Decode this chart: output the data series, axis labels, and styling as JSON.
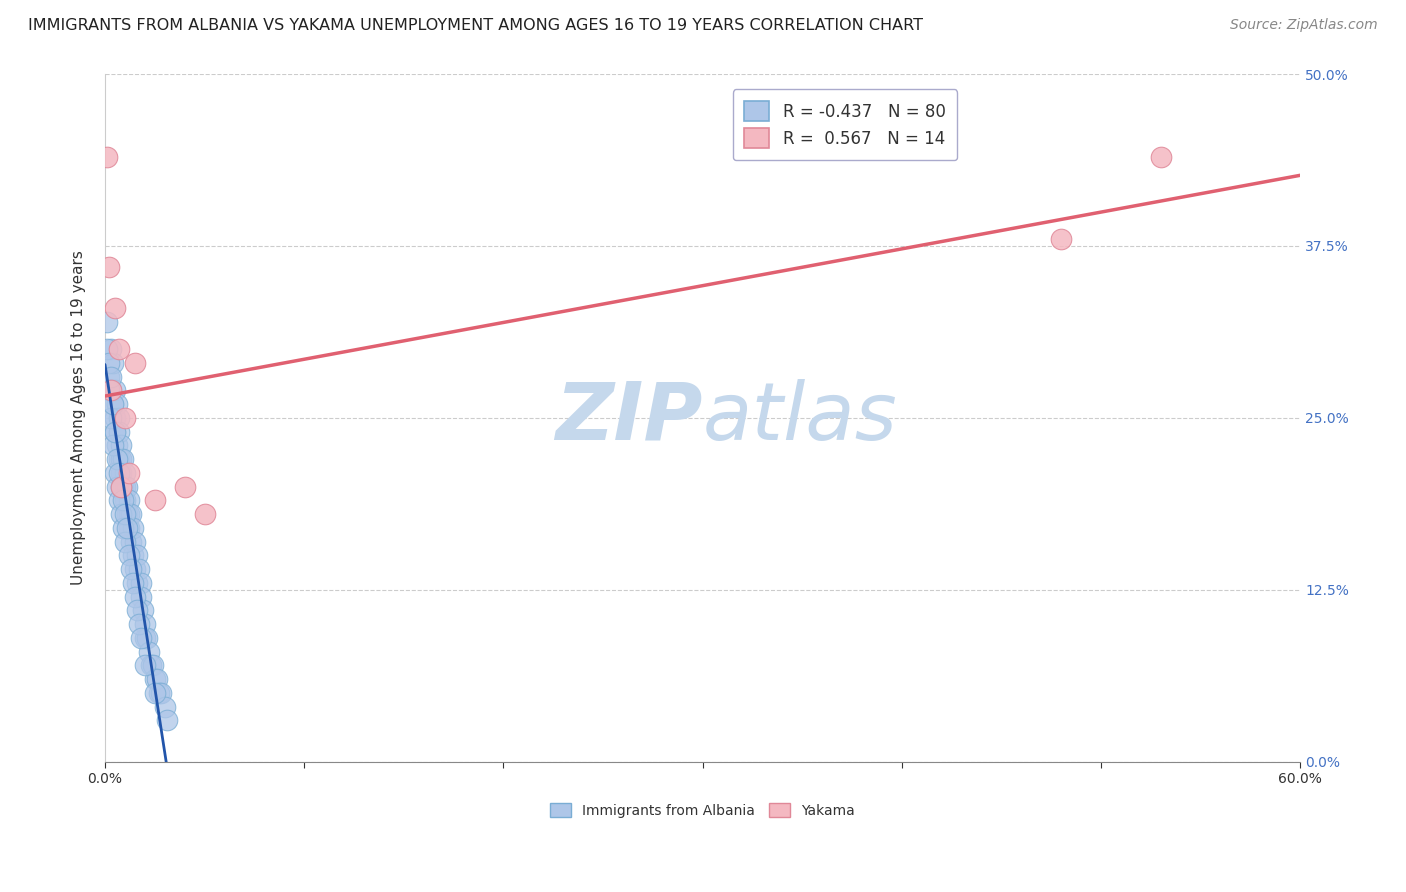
{
  "title": "IMMIGRANTS FROM ALBANIA VS YAKAMA UNEMPLOYMENT AMONG AGES 16 TO 19 YEARS CORRELATION CHART",
  "source": "Source: ZipAtlas.com",
  "ylabel": "Unemployment Among Ages 16 to 19 years",
  "xlabel_albania": "Immigrants from Albania",
  "xlabel_yakama": "Yakama",
  "xlim": [
    0.0,
    0.6
  ],
  "ylim": [
    0.0,
    0.5
  ],
  "xticks": [
    0.0,
    0.1,
    0.2,
    0.3,
    0.4,
    0.5,
    0.6
  ],
  "yticks": [
    0.0,
    0.125,
    0.25,
    0.375,
    0.5
  ],
  "R_albania": -0.437,
  "N_albania": 80,
  "R_yakama": 0.567,
  "N_yakama": 14,
  "color_albania": "#aec6e8",
  "color_albania_edge": "#7aadd4",
  "color_albania_line": "#2255aa",
  "color_yakama": "#f4b8c1",
  "color_yakama_edge": "#e08898",
  "color_yakama_line": "#e06070",
  "watermark": "ZIPatlas",
  "watermark_color": "#d8e8f5",
  "title_fontsize": 11.5,
  "axis_label_fontsize": 11,
  "tick_fontsize": 10,
  "legend_fontsize": 12,
  "source_fontsize": 10,
  "albania_x": [
    0.002,
    0.003,
    0.003,
    0.004,
    0.004,
    0.005,
    0.005,
    0.005,
    0.006,
    0.006,
    0.007,
    0.007,
    0.007,
    0.008,
    0.008,
    0.008,
    0.009,
    0.009,
    0.01,
    0.01,
    0.01,
    0.011,
    0.011,
    0.012,
    0.012,
    0.012,
    0.013,
    0.013,
    0.014,
    0.014,
    0.015,
    0.015,
    0.016,
    0.016,
    0.017,
    0.018,
    0.018,
    0.019,
    0.02,
    0.02,
    0.021,
    0.022,
    0.023,
    0.024,
    0.025,
    0.026,
    0.027,
    0.028,
    0.03,
    0.031,
    0.001,
    0.001,
    0.002,
    0.002,
    0.003,
    0.003,
    0.004,
    0.004,
    0.005,
    0.005,
    0.006,
    0.006,
    0.007,
    0.007,
    0.008,
    0.008,
    0.009,
    0.009,
    0.01,
    0.01,
    0.011,
    0.012,
    0.013,
    0.014,
    0.015,
    0.016,
    0.017,
    0.018,
    0.02,
    0.025
  ],
  "albania_y": [
    0.28,
    0.3,
    0.27,
    0.29,
    0.26,
    0.25,
    0.27,
    0.24,
    0.26,
    0.23,
    0.25,
    0.22,
    0.24,
    0.23,
    0.21,
    0.22,
    0.22,
    0.2,
    0.21,
    0.19,
    0.2,
    0.2,
    0.18,
    0.19,
    0.17,
    0.18,
    0.18,
    0.16,
    0.17,
    0.15,
    0.16,
    0.14,
    0.15,
    0.13,
    0.14,
    0.13,
    0.12,
    0.11,
    0.1,
    0.09,
    0.09,
    0.08,
    0.07,
    0.07,
    0.06,
    0.06,
    0.05,
    0.05,
    0.04,
    0.03,
    0.32,
    0.3,
    0.29,
    0.27,
    0.28,
    0.25,
    0.26,
    0.23,
    0.24,
    0.21,
    0.22,
    0.2,
    0.21,
    0.19,
    0.2,
    0.18,
    0.19,
    0.17,
    0.18,
    0.16,
    0.17,
    0.15,
    0.14,
    0.13,
    0.12,
    0.11,
    0.1,
    0.09,
    0.07,
    0.05
  ],
  "yakama_x": [
    0.001,
    0.002,
    0.003,
    0.005,
    0.007,
    0.008,
    0.01,
    0.012,
    0.015,
    0.025,
    0.04,
    0.05,
    0.48,
    0.53
  ],
  "yakama_y": [
    0.44,
    0.36,
    0.27,
    0.33,
    0.3,
    0.2,
    0.25,
    0.21,
    0.29,
    0.19,
    0.2,
    0.18,
    0.38,
    0.44
  ],
  "yticklabels_right": [
    "0.0%",
    "12.5%",
    "25.0%",
    "37.5%",
    "50.0%"
  ],
  "ytick_color": "#4472c4",
  "xtick_color": "#333333"
}
